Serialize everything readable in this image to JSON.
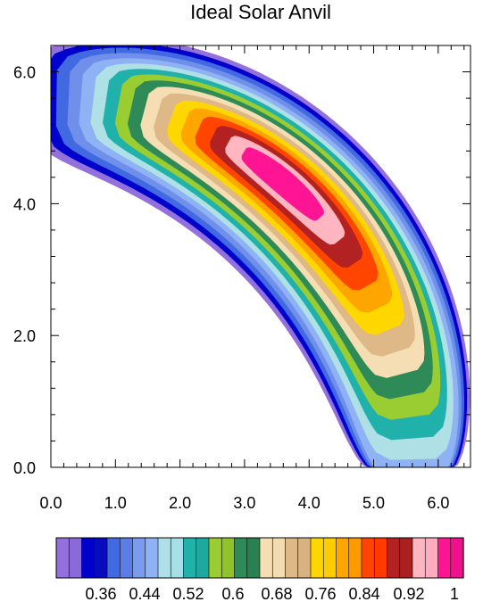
{
  "chart_data": {
    "type": "contour",
    "title": "Ideal Solar Anvil",
    "xlabel": "",
    "ylabel": "",
    "xlim": [
      0.0,
      6.5
    ],
    "ylim": [
      0.0,
      6.4
    ],
    "x_ticks": [
      "0.0",
      "1.0",
      "2.0",
      "3.0",
      "4.0",
      "5.0",
      "6.0"
    ],
    "y_ticks": [
      "0.0",
      "2.0",
      "4.0",
      "6.0"
    ],
    "colorbar": {
      "placement": "bottom",
      "labels": [
        "0.36",
        "0.44",
        "0.52",
        "0.6",
        "0.68",
        "0.76",
        "0.84",
        "0.92",
        "1"
      ],
      "colors": [
        "#9370db",
        "#8a6ad8",
        "#0000cd",
        "#0a0abf",
        "#4169e1",
        "#5b7ee6",
        "#7b9bef",
        "#8fb2f5",
        "#aee0e6",
        "#a6dfe8",
        "#20b2aa",
        "#1ea89f",
        "#9acd32",
        "#8fc22b",
        "#2e8b57",
        "#2a8050",
        "#f5deb3",
        "#f2dcb0",
        "#deb887",
        "#d8b280",
        "#ffd700",
        "#ffcc00",
        "#ffa500",
        "#ff9900",
        "#ff4500",
        "#ff3b00",
        "#b22222",
        "#aa1f1f",
        "#ffb6c1",
        "#ffabc0",
        "#ff1493",
        "#f0128c"
      ]
    },
    "field": {
      "description_levels": [
        0.32,
        0.36,
        0.4,
        0.44,
        0.48,
        0.52,
        0.56,
        0.6,
        0.64,
        0.68,
        0.72,
        0.76,
        0.8,
        0.84,
        0.88,
        0.92,
        0.96,
        1.0
      ],
      "band_colors": [
        "#9370db",
        "#0000cd",
        "#4169e1",
        "#6f8fea",
        "#8fb2f5",
        "#aee0e6",
        "#20b2aa",
        "#9acd32",
        "#2e8b57",
        "#f5deb3",
        "#deb887",
        "#ffd700",
        "#ffa500",
        "#ff4500",
        "#b22222",
        "#ffb6c1",
        "#ff1493"
      ]
    }
  }
}
